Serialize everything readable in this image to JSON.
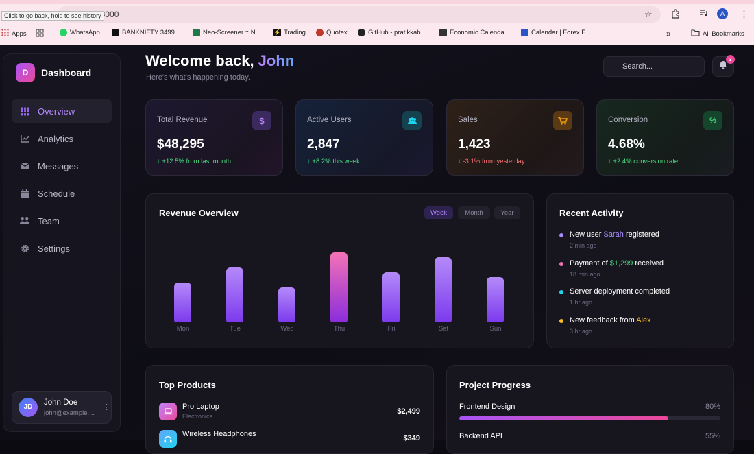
{
  "browser": {
    "address": "t:8000",
    "tooltip": "Click to go back, hold to see history",
    "profile_initial": "A",
    "bookmarks": [
      {
        "label": "Apps",
        "color": "#c94a4a"
      },
      {
        "label": "WhatsApp",
        "color": "#25d366"
      },
      {
        "label": "BANKNIFTY 3499...",
        "color": "#111111"
      },
      {
        "label": "Neo-Screener :: N...",
        "color": "#1f7a4a"
      },
      {
        "label": "Trading",
        "color": "#f2c94c"
      },
      {
        "label": "Quotex",
        "color": "#c0392b"
      },
      {
        "label": "GitHub - pratikkab...",
        "color": "#222222"
      },
      {
        "label": "Economic Calenda...",
        "color": "#333333"
      },
      {
        "label": "Calendar | Forex F...",
        "color": "#2b54c4"
      }
    ],
    "more_bookmarks": "»",
    "all_bookmarks": "All Bookmarks"
  },
  "sidebar": {
    "logo_letter": "D",
    "title": "Dashboard",
    "items": [
      {
        "label": "Overview",
        "icon": "grid-icon",
        "active": true
      },
      {
        "label": "Analytics",
        "icon": "chart-line-icon",
        "active": false
      },
      {
        "label": "Messages",
        "icon": "envelope-icon",
        "active": false
      },
      {
        "label": "Schedule",
        "icon": "calendar-icon",
        "active": false
      },
      {
        "label": "Team",
        "icon": "users-icon",
        "active": false
      },
      {
        "label": "Settings",
        "icon": "gear-icon",
        "active": false
      }
    ],
    "user": {
      "initials": "JD",
      "name": "John Doe",
      "email": "john@example...."
    }
  },
  "header": {
    "welcome": "Welcome back, ",
    "name": "John",
    "subtitle": "Here's what's happening today.",
    "search_placeholder": "Search...",
    "notification_count": "3"
  },
  "stats": [
    {
      "label": "Total Revenue",
      "value": "$48,295",
      "change": "+12.5% from last month",
      "direction": "up",
      "icon": "dollar-icon",
      "accent": "#a855f7"
    },
    {
      "label": "Active Users",
      "value": "2,847",
      "change": "+8.2% this week",
      "direction": "up",
      "icon": "users-icon",
      "accent": "#22d3ee"
    },
    {
      "label": "Sales",
      "value": "1,423",
      "change": "-3.1% from yesterday",
      "direction": "down",
      "icon": "cart-icon",
      "accent": "#f59e0b"
    },
    {
      "label": "Conversion",
      "value": "4.68%",
      "change": "+2.4% conversion rate",
      "direction": "up",
      "icon": "percent-icon",
      "accent": "#22c55e"
    }
  ],
  "revenue": {
    "title": "Revenue Overview",
    "tabs": [
      {
        "label": "Week",
        "active": true
      },
      {
        "label": "Month",
        "active": false
      },
      {
        "label": "Year",
        "active": false
      }
    ]
  },
  "chart_data": {
    "type": "bar",
    "categories": [
      "Mon",
      "Tue",
      "Wed",
      "Thu",
      "Fri",
      "Sat",
      "Sun"
    ],
    "values": [
      58,
      80,
      51,
      102,
      73,
      95,
      66
    ],
    "highlight": "Thu",
    "title": "Revenue Overview",
    "xlabel": "",
    "ylabel": ""
  },
  "activity": {
    "title": "Recent Activity",
    "items": [
      {
        "pre": "New user ",
        "hl": "Sarah",
        "post": " registered",
        "time": "2 min ago",
        "dot": "#a78bfa",
        "hl_color": "#a78bfa"
      },
      {
        "pre": "Payment of ",
        "hl": "$1,299",
        "post": " received",
        "time": "18 min ago",
        "dot": "#f472b6",
        "hl_color": "#4ade80"
      },
      {
        "pre": "Server deployment completed",
        "hl": "",
        "post": "",
        "time": "1 hr ago",
        "dot": "#22d3ee",
        "hl_color": "#22d3ee"
      },
      {
        "pre": "New feedback from ",
        "hl": "Alex",
        "post": "",
        "time": "3 hr ago",
        "dot": "#fbbf24",
        "hl_color": "#fbbf24"
      }
    ]
  },
  "products": {
    "title": "Top Products",
    "items": [
      {
        "name": "Pro Laptop",
        "category": "Electronics",
        "price": "$2,499",
        "icon": "laptop-icon",
        "color": "#c084fc"
      },
      {
        "name": "Wireless Headphones",
        "category": "",
        "price": "$349",
        "icon": "headphones-icon",
        "color": "#60a5fa"
      }
    ]
  },
  "projects": {
    "title": "Project Progress",
    "items": [
      {
        "name": "Frontend Design",
        "percent": "80%",
        "progress": 0.8
      },
      {
        "name": "Backend API",
        "percent": "55%",
        "progress": 0.55
      }
    ]
  }
}
